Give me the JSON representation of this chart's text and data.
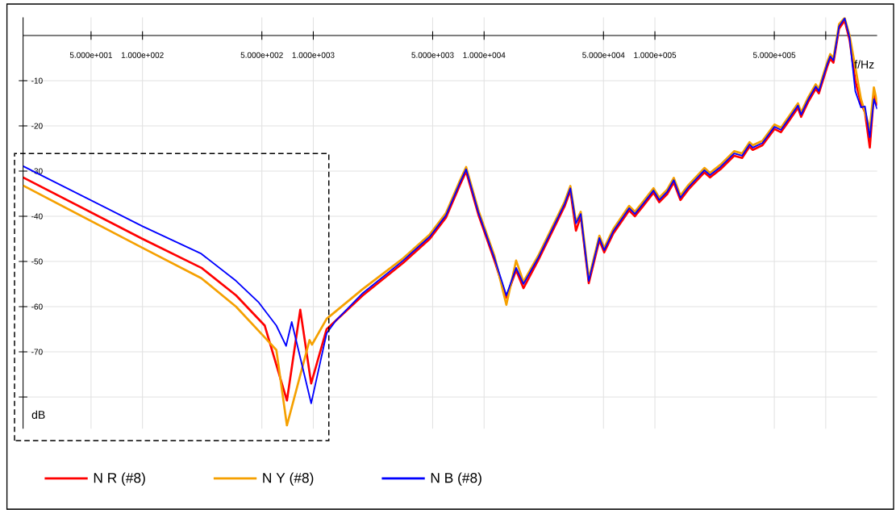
{
  "chart_data": {
    "type": "line",
    "xlabel": "f/Hz",
    "ylabel": "dB",
    "log": "x",
    "grid": true,
    "legend": "bottom",
    "xlim": [
      20,
      2000000
    ],
    "ylim": [
      -87,
      4
    ],
    "xticks": [
      {
        "value": 50,
        "label": "5.000e+001"
      },
      {
        "value": 100,
        "label": "1.000e+002"
      },
      {
        "value": 500,
        "label": "5.000e+002"
      },
      {
        "value": 1000,
        "label": "1.000e+003"
      },
      {
        "value": 5000,
        "label": "5.000e+003"
      },
      {
        "value": 10000,
        "label": "1.000e+004"
      },
      {
        "value": 50000,
        "label": "5.000e+004"
      },
      {
        "value": 100000,
        "label": "1.000e+005"
      },
      {
        "value": 500000,
        "label": "5.000e+005"
      },
      {
        "value": 1000000,
        "label": null
      }
    ],
    "yticks": [
      -10,
      -20,
      -30,
      -40,
      -50,
      -60,
      -70,
      {
        "value": -80,
        "label": null
      }
    ],
    "series": [
      {
        "name": "N R (#8)",
        "color": "#ff0000",
        "x": [
          20,
          100,
          221,
          353,
          520,
          701,
          839,
          972,
          1197,
          1950,
          3360,
          4810,
          5980,
          7200,
          7850,
          9250,
          11500,
          13500,
          15400,
          17000,
          20700,
          29600,
          32000,
          34500,
          36800,
          41000,
          47300,
          50500,
          56900,
          70700,
          76400,
          85100,
          98100,
          106000,
          118000,
          129000,
          141000,
          157000,
          195000,
          210000,
          242000,
          291000,
          324000,
          358000,
          374000,
          426000,
          501000,
          547000,
          604000,
          688000,
          718000,
          792000,
          874000,
          912000,
          1020000,
          1063000,
          1110000,
          1197000,
          1291000,
          1380000,
          1490000,
          1608000,
          1698000,
          1812000,
          1914000,
          2000000
        ],
        "values": [
          -31.4,
          -45.0,
          -51.4,
          -57.5,
          -64.2,
          -80.8,
          -60.7,
          -77.0,
          -65.0,
          -57.5,
          -50.3,
          -45.0,
          -40.3,
          -33.2,
          -30.1,
          -39.6,
          -49.8,
          -58.0,
          -51.9,
          -55.9,
          -49.8,
          -37.8,
          -34.3,
          -43.2,
          -40.0,
          -54.8,
          -45.3,
          -48.0,
          -43.9,
          -38.7,
          -40.0,
          -37.8,
          -34.8,
          -36.9,
          -35.1,
          -32.5,
          -36.4,
          -34.1,
          -30.3,
          -31.4,
          -29.6,
          -26.6,
          -27.1,
          -24.6,
          -25.3,
          -24.3,
          -20.7,
          -21.4,
          -19.1,
          -16.0,
          -18.0,
          -14.6,
          -11.8,
          -12.8,
          -6.9,
          -5.1,
          -6.0,
          1.5,
          3.3,
          -1.0,
          -10.0,
          -15.0,
          -17.0,
          -24.8,
          -13.2,
          -15.5
        ]
      },
      {
        "name": "N Y (#8)",
        "color": "#f5a000",
        "x": [
          20,
          100,
          221,
          353,
          520,
          608,
          701,
          951,
          983,
          1197,
          1950,
          3360,
          4810,
          5980,
          7200,
          7850,
          9250,
          11500,
          13500,
          15400,
          17000,
          20700,
          29600,
          32000,
          34500,
          36800,
          41000,
          47300,
          50500,
          56900,
          70700,
          76400,
          85100,
          98100,
          106000,
          118000,
          129000,
          141000,
          157000,
          195000,
          210000,
          242000,
          291000,
          324000,
          358000,
          374000,
          426000,
          501000,
          547000,
          604000,
          688000,
          718000,
          792000,
          874000,
          912000,
          1020000,
          1063000,
          1110000,
          1197000,
          1291000,
          1380000,
          1490000,
          1608000,
          1698000,
          1812000,
          1914000,
          2000000
        ],
        "values": [
          -33.2,
          -47.0,
          -53.7,
          -60.0,
          -66.8,
          -69.6,
          -86.3,
          -67.4,
          -68.4,
          -62.7,
          -56.1,
          -49.3,
          -44.0,
          -39.3,
          -32.2,
          -29.1,
          -38.6,
          -48.8,
          -59.6,
          -49.8,
          -54.5,
          -48.8,
          -36.8,
          -33.3,
          -41.3,
          -39.0,
          -53.8,
          -44.3,
          -47.0,
          -42.9,
          -37.7,
          -39.0,
          -36.8,
          -33.8,
          -35.9,
          -34.1,
          -31.5,
          -35.4,
          -33.1,
          -29.3,
          -30.4,
          -28.6,
          -25.6,
          -26.1,
          -23.6,
          -24.3,
          -23.3,
          -19.7,
          -20.4,
          -18.1,
          -15.0,
          -17.0,
          -13.6,
          -10.8,
          -11.8,
          -5.9,
          -4.1,
          -5.0,
          2.5,
          3.9,
          0.0,
          -7.0,
          -14.0,
          -17.0,
          -20.7,
          -11.5,
          -14.8
        ]
      },
      {
        "name": "N B (#8)",
        "color": "#0000ff",
        "x": [
          20,
          100,
          221,
          353,
          480,
          608,
          693,
          748,
          972,
          1197,
          1362,
          1950,
          3360,
          4810,
          5980,
          7200,
          7850,
          9250,
          11500,
          13500,
          15400,
          17000,
          20700,
          29600,
          32000,
          34500,
          36800,
          41000,
          47300,
          50500,
          56900,
          70700,
          76400,
          85100,
          98100,
          106000,
          118000,
          129000,
          141000,
          157000,
          195000,
          210000,
          242000,
          291000,
          324000,
          358000,
          374000,
          426000,
          501000,
          547000,
          604000,
          688000,
          718000,
          792000,
          874000,
          912000,
          1020000,
          1063000,
          1110000,
          1197000,
          1291000,
          1380000,
          1490000,
          1608000,
          1698000,
          1812000,
          1914000,
          2000000
        ],
        "values": [
          -28.9,
          -42.2,
          -48.3,
          -54.3,
          -59.1,
          -64.2,
          -68.7,
          -63.4,
          -81.4,
          -65.9,
          -63.0,
          -57.0,
          -49.8,
          -44.5,
          -39.8,
          -32.7,
          -29.6,
          -39.1,
          -49.3,
          -57.5,
          -51.4,
          -55.0,
          -49.3,
          -37.3,
          -33.8,
          -41.6,
          -39.5,
          -54.3,
          -44.8,
          -47.5,
          -43.4,
          -38.2,
          -39.5,
          -37.3,
          -34.3,
          -36.4,
          -34.6,
          -32.0,
          -35.9,
          -33.6,
          -29.8,
          -30.9,
          -29.1,
          -26.1,
          -26.6,
          -24.1,
          -24.8,
          -23.8,
          -20.2,
          -20.9,
          -18.6,
          -15.5,
          -17.5,
          -14.1,
          -11.3,
          -12.3,
          -6.4,
          -4.6,
          -5.5,
          2.0,
          3.8,
          -0.5,
          -12.3,
          -15.9,
          -15.7,
          -22.5,
          -14.1,
          -16.3
        ]
      }
    ]
  }
}
